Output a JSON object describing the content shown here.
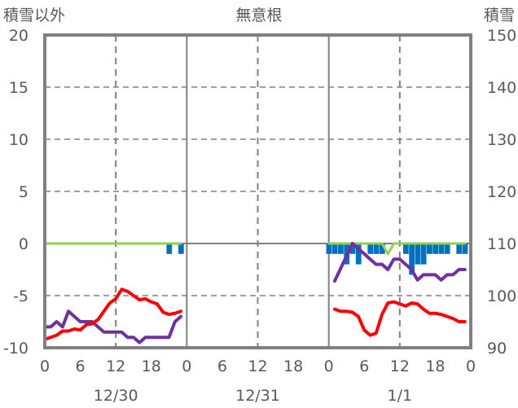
{
  "chart_data": {
    "type": "bar+line",
    "title": "無意根",
    "ylabel_left": "積雪以外",
    "ylabel_right": "積雪",
    "ylim_left": [
      -10,
      20
    ],
    "ylim_right": [
      90,
      150
    ],
    "yticks_left": [
      "20",
      "15",
      "10",
      "5",
      "0",
      "-5",
      "-10"
    ],
    "yticks_right": [
      "150",
      "140",
      "130",
      "120",
      "110",
      "100",
      "90"
    ],
    "xticks": [
      "0",
      "6",
      "12",
      "18",
      "0",
      "6",
      "12",
      "18",
      "0",
      "6",
      "12",
      "18",
      "0"
    ],
    "dates": [
      "12/30",
      "12/31",
      "1/1"
    ],
    "grid": true,
    "x_unit": "hours from 12/30 0:00",
    "series": [
      {
        "name": "bars",
        "type": "bar",
        "color": "#0070c0",
        "points": [
          [
            21,
            -1
          ],
          [
            23,
            -1
          ],
          [
            48,
            -1
          ],
          [
            49,
            -1
          ],
          [
            50,
            -1
          ],
          [
            51,
            -2
          ],
          [
            52,
            -1
          ],
          [
            53,
            -2
          ],
          [
            55,
            -1
          ],
          [
            56,
            -1
          ],
          [
            57,
            -1
          ],
          [
            61,
            -1
          ],
          [
            62,
            -3
          ],
          [
            63,
            -2
          ],
          [
            64,
            -2
          ],
          [
            65,
            -1
          ],
          [
            66,
            -1
          ],
          [
            67,
            -1
          ],
          [
            68,
            -1
          ],
          [
            70,
            -1
          ],
          [
            71,
            -1
          ]
        ]
      },
      {
        "name": "green",
        "type": "line",
        "color": "#92d050",
        "segments": [
          [
            [
              0,
              0
            ],
            [
              23,
              0
            ]
          ],
          [
            [
              48,
              0
            ],
            [
              49,
              0
            ],
            [
              50,
              0
            ],
            [
              51,
              0
            ],
            [
              52,
              0
            ],
            [
              53,
              0
            ],
            [
              54,
              0
            ],
            [
              55,
              0
            ],
            [
              56,
              0
            ],
            [
              57,
              0
            ],
            [
              58,
              -1
            ],
            [
              59,
              0
            ],
            [
              60,
              0
            ],
            [
              61,
              0
            ],
            [
              62,
              0
            ],
            [
              63,
              0
            ],
            [
              64,
              0
            ],
            [
              65,
              0
            ],
            [
              66,
              0
            ],
            [
              67,
              0
            ],
            [
              68,
              0
            ],
            [
              69,
              0
            ],
            [
              70,
              0
            ],
            [
              71,
              0
            ]
          ]
        ]
      },
      {
        "name": "purple",
        "type": "line",
        "color": "#7030a0",
        "segments": [
          [
            [
              0,
              -8
            ],
            [
              1,
              -8
            ],
            [
              2,
              -7.5
            ],
            [
              3,
              -8
            ],
            [
              4,
              -6.5
            ],
            [
              5,
              -7
            ],
            [
              6,
              -7.5
            ],
            [
              7,
              -7.5
            ],
            [
              8,
              -7.5
            ],
            [
              9,
              -8
            ],
            [
              10,
              -8.5
            ],
            [
              11,
              -8.5
            ],
            [
              12,
              -8.5
            ],
            [
              13,
              -8.5
            ],
            [
              14,
              -9
            ],
            [
              15,
              -9
            ],
            [
              16,
              -9.5
            ],
            [
              17,
              -9
            ],
            [
              18,
              -9
            ],
            [
              19,
              -9
            ],
            [
              20,
              -9
            ],
            [
              21,
              -9
            ],
            [
              22,
              -7.5
            ],
            [
              23,
              -7
            ]
          ],
          [
            [
              49,
              -3.6
            ],
            [
              50,
              -2.4
            ],
            [
              51,
              -1.2
            ],
            [
              52,
              0
            ],
            [
              53,
              -0.5
            ],
            [
              54,
              -1
            ],
            [
              55,
              -1.5
            ],
            [
              56,
              -2
            ],
            [
              57,
              -2
            ],
            [
              58,
              -2.5
            ],
            [
              59,
              -1.5
            ],
            [
              60,
              -1.5
            ],
            [
              61,
              -2
            ],
            [
              62,
              -2.5
            ],
            [
              63,
              -3.5
            ],
            [
              64,
              -3
            ],
            [
              65,
              -3
            ],
            [
              66,
              -3
            ],
            [
              67,
              -3.5
            ],
            [
              68,
              -3
            ],
            [
              69,
              -3
            ],
            [
              70,
              -2.5
            ],
            [
              71,
              -2.5
            ]
          ]
        ]
      },
      {
        "name": "red",
        "type": "line",
        "color": "#ff0000",
        "segments": [
          [
            [
              0,
              -9.2
            ],
            [
              1,
              -9
            ],
            [
              2,
              -8.8
            ],
            [
              3,
              -8.4
            ],
            [
              4,
              -8.4
            ],
            [
              5,
              -8.2
            ],
            [
              6,
              -8.3
            ],
            [
              7,
              -7.8
            ],
            [
              8,
              -7.7
            ],
            [
              9,
              -7.3
            ],
            [
              10,
              -6.5
            ],
            [
              11,
              -5.7
            ],
            [
              12,
              -5.3
            ],
            [
              13,
              -4.4
            ],
            [
              14,
              -4.6
            ],
            [
              15,
              -5
            ],
            [
              16,
              -5.4
            ],
            [
              17,
              -5.3
            ],
            [
              18,
              -5.6
            ],
            [
              19,
              -5.8
            ],
            [
              20,
              -6.6
            ],
            [
              21,
              -6.8
            ],
            [
              22,
              -6.7
            ],
            [
              23,
              -6.5
            ]
          ],
          [
            [
              49,
              -6.3
            ],
            [
              50,
              -6.5
            ],
            [
              51,
              -6.5
            ],
            [
              52,
              -6.6
            ],
            [
              53,
              -7
            ],
            [
              54,
              -8.3
            ],
            [
              55,
              -8.8
            ],
            [
              56,
              -8.6
            ],
            [
              57,
              -6.8
            ],
            [
              58,
              -5.7
            ],
            [
              59,
              -5.6
            ],
            [
              60,
              -5.8
            ],
            [
              61,
              -6
            ],
            [
              62,
              -5.7
            ],
            [
              63,
              -5.8
            ],
            [
              64,
              -6.3
            ],
            [
              65,
              -6.7
            ],
            [
              66,
              -6.7
            ],
            [
              67,
              -6.8
            ],
            [
              68,
              -7
            ],
            [
              69,
              -7.2
            ],
            [
              70,
              -7.5
            ],
            [
              71,
              -7.5
            ]
          ]
        ]
      }
    ]
  }
}
